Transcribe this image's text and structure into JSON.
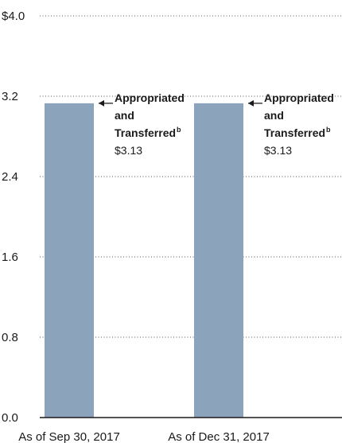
{
  "chart_data": {
    "type": "bar",
    "title": "",
    "xlabel": "",
    "ylabel": "",
    "ylim": [
      0,
      4.0
    ],
    "yticks": [
      {
        "value": 0,
        "label": "0.0"
      },
      {
        "value": 0.8,
        "label": "0.8"
      },
      {
        "value": 1.6,
        "label": "1.6"
      },
      {
        "value": 2.4,
        "label": "2.4"
      },
      {
        "value": 3.2,
        "label": "3.2"
      },
      {
        "value": 4.0,
        "label": "$4.0"
      }
    ],
    "categories": [
      "As of Sep 30, 2017",
      "As of Dec 31, 2017"
    ],
    "values": [
      3.13,
      3.13
    ],
    "grid": true,
    "bar_color": "#8ba4bb",
    "annotations": [
      {
        "line1": "Appropriated",
        "line2": "and",
        "line3": "Transferred",
        "superscript": "b",
        "value_label": "$3.13"
      },
      {
        "line1": "Appropriated",
        "line2": "and",
        "line3": "Transferred",
        "superscript": "b",
        "value_label": "$3.13"
      }
    ]
  }
}
